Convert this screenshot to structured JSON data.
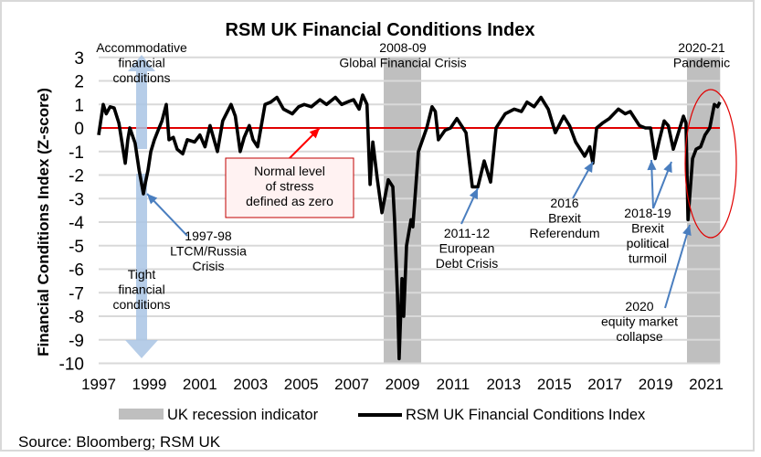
{
  "chart_data": {
    "type": "line",
    "title": "RSM UK Financial Conditions Index",
    "ylabel": "Financial Conditions Index (Z-score)",
    "xlabel": "",
    "xlim": [
      1997,
      2021.55
    ],
    "ylim": [
      -10,
      3
    ],
    "x_ticks": [
      "1997",
      "1999",
      "2001",
      "2003",
      "2005",
      "2007",
      "2009",
      "2011",
      "2013",
      "2015",
      "2017",
      "2019",
      "2021"
    ],
    "y_ticks": [
      "3",
      "2",
      "1",
      "0",
      "-1",
      "-2",
      "-3",
      "-4",
      "-5",
      "-6",
      "-7",
      "-8",
      "-9",
      "-10"
    ],
    "grid": true,
    "reference_line": {
      "value": 0,
      "color": "#e00000"
    },
    "legend_position": "bottom",
    "legend": [
      {
        "label": "UK recession indicator",
        "kind": "area",
        "color": "#bfbfbf"
      },
      {
        "label": "RSM UK Financial Conditions Index",
        "kind": "line",
        "color": "#000000"
      }
    ],
    "recessions": [
      [
        2008.26,
        2009.74
      ],
      [
        2020.24,
        2021.55
      ]
    ],
    "series": [
      {
        "color": "#000000",
        "points": [
          [
            1997.0,
            -0.3
          ],
          [
            1997.07,
            0.2
          ],
          [
            1997.18,
            1.0
          ],
          [
            1997.3,
            0.6
          ],
          [
            1997.45,
            0.9
          ],
          [
            1997.61,
            0.85
          ],
          [
            1997.8,
            0.2
          ],
          [
            1998.05,
            -1.5
          ],
          [
            1998.15,
            -0.5
          ],
          [
            1998.23,
            0.0
          ],
          [
            1998.44,
            -0.65
          ],
          [
            1998.6,
            -1.8
          ],
          [
            1998.77,
            -2.8
          ],
          [
            1998.85,
            -2.3
          ],
          [
            1998.95,
            -1.8
          ],
          [
            1999.06,
            -1.0
          ],
          [
            1999.2,
            -0.5
          ],
          [
            1999.35,
            -0.1
          ],
          [
            1999.5,
            0.3
          ],
          [
            1999.67,
            1.0
          ],
          [
            1999.78,
            -0.5
          ],
          [
            1999.95,
            -0.4
          ],
          [
            2000.1,
            -0.9
          ],
          [
            2000.32,
            -1.1
          ],
          [
            2000.5,
            -0.5
          ],
          [
            2000.79,
            -0.6
          ],
          [
            2001.0,
            -0.3
          ],
          [
            2001.2,
            -0.8
          ],
          [
            2001.4,
            0.1
          ],
          [
            2001.69,
            -1.0
          ],
          [
            2001.9,
            0.3
          ],
          [
            2002.23,
            1.0
          ],
          [
            2002.4,
            0.5
          ],
          [
            2002.59,
            -1.0
          ],
          [
            2002.75,
            -0.4
          ],
          [
            2002.95,
            0.1
          ],
          [
            2003.1,
            -0.5
          ],
          [
            2003.28,
            -0.8
          ],
          [
            2003.57,
            1.0
          ],
          [
            2003.8,
            1.1
          ],
          [
            2004.04,
            1.3
          ],
          [
            2004.3,
            0.8
          ],
          [
            2004.65,
            0.6
          ],
          [
            2004.9,
            0.9
          ],
          [
            2005.12,
            1.0
          ],
          [
            2005.4,
            0.9
          ],
          [
            2005.74,
            1.2
          ],
          [
            2006.0,
            1.0
          ],
          [
            2006.35,
            1.3
          ],
          [
            2006.6,
            1.0
          ],
          [
            2006.82,
            1.1
          ],
          [
            2007.07,
            1.2
          ],
          [
            2007.29,
            0.8
          ],
          [
            2007.43,
            1.4
          ],
          [
            2007.6,
            1.0
          ],
          [
            2007.72,
            -2.4
          ],
          [
            2007.83,
            -0.6
          ],
          [
            2008.01,
            -2.2
          ],
          [
            2008.19,
            -3.6
          ],
          [
            2008.44,
            -2.2
          ],
          [
            2008.62,
            -2.5
          ],
          [
            2008.69,
            -3.9
          ],
          [
            2008.8,
            -7.0
          ],
          [
            2008.87,
            -9.8
          ],
          [
            2008.98,
            -6.4
          ],
          [
            2009.05,
            -8.0
          ],
          [
            2009.16,
            -5.0
          ],
          [
            2009.34,
            -3.9
          ],
          [
            2009.41,
            -4.2
          ],
          [
            2009.63,
            -1.0
          ],
          [
            2009.96,
            0.0
          ],
          [
            2010.17,
            0.9
          ],
          [
            2010.3,
            0.7
          ],
          [
            2010.42,
            -0.5
          ],
          [
            2010.68,
            -0.1
          ],
          [
            2010.9,
            0.0
          ],
          [
            2011.15,
            0.4
          ],
          [
            2011.51,
            -0.2
          ],
          [
            2011.76,
            -2.5
          ],
          [
            2011.98,
            -2.5
          ],
          [
            2012.23,
            -1.4
          ],
          [
            2012.48,
            -2.3
          ],
          [
            2012.7,
            0.0
          ],
          [
            2013.06,
            0.6
          ],
          [
            2013.42,
            0.8
          ],
          [
            2013.7,
            0.7
          ],
          [
            2013.92,
            1.1
          ],
          [
            2014.2,
            0.9
          ],
          [
            2014.47,
            1.3
          ],
          [
            2014.76,
            0.8
          ],
          [
            2015.04,
            -0.2
          ],
          [
            2015.37,
            0.5
          ],
          [
            2015.6,
            0.1
          ],
          [
            2015.84,
            -0.6
          ],
          [
            2016.2,
            -1.2
          ],
          [
            2016.4,
            -0.8
          ],
          [
            2016.52,
            -1.5
          ],
          [
            2016.67,
            0.0
          ],
          [
            2016.9,
            0.2
          ],
          [
            2017.17,
            0.4
          ],
          [
            2017.53,
            0.8
          ],
          [
            2017.8,
            0.6
          ],
          [
            2018.0,
            0.7
          ],
          [
            2018.36,
            0.1
          ],
          [
            2018.6,
            0.0
          ],
          [
            2018.8,
            0.0
          ],
          [
            2018.98,
            -1.3
          ],
          [
            2019.15,
            -0.5
          ],
          [
            2019.34,
            0.3
          ],
          [
            2019.5,
            0.1
          ],
          [
            2019.7,
            -0.9
          ],
          [
            2019.9,
            -0.2
          ],
          [
            2020.1,
            0.5
          ],
          [
            2020.2,
            0.2
          ],
          [
            2020.28,
            -3.9
          ],
          [
            2020.46,
            -1.3
          ],
          [
            2020.6,
            -0.9
          ],
          [
            2020.78,
            -0.8
          ],
          [
            2020.95,
            -0.3
          ],
          [
            2021.14,
            0.0
          ],
          [
            2021.32,
            1.0
          ],
          [
            2021.45,
            0.9
          ],
          [
            2021.54,
            1.1
          ]
        ]
      }
    ],
    "annotations": [
      {
        "lines": [
          "Accommodative",
          "financial",
          "conditions"
        ]
      },
      {
        "lines": [
          "Tight",
          "financial",
          "conditions"
        ]
      },
      {
        "lines": [
          "2008-09",
          "Global Financial Crisis"
        ]
      },
      {
        "lines": [
          "2020-21",
          "Pandemic"
        ]
      },
      {
        "lines": [
          "Normal level",
          "of stress",
          "defined as zero"
        ]
      },
      {
        "lines": [
          "1997-98",
          "LTCM/Russia",
          "Crisis"
        ]
      },
      {
        "lines": [
          "2011-12",
          "European",
          "Debt Crisis"
        ]
      },
      {
        "lines": [
          "2016",
          "Brexit",
          "Referendum"
        ]
      },
      {
        "lines": [
          "2018-19",
          "Brexit",
          "political",
          "turmoil"
        ]
      },
      {
        "lines": [
          "2020",
          "equity market",
          "collapse"
        ]
      }
    ]
  },
  "source": "Source: Bloomberg; RSM UK",
  "colors": {
    "recession": "#bfbfbf",
    "zero_line": "#e00000",
    "annotation_arrow": "#4a7ebf",
    "direction_arrow": "#a9c4e4"
  }
}
